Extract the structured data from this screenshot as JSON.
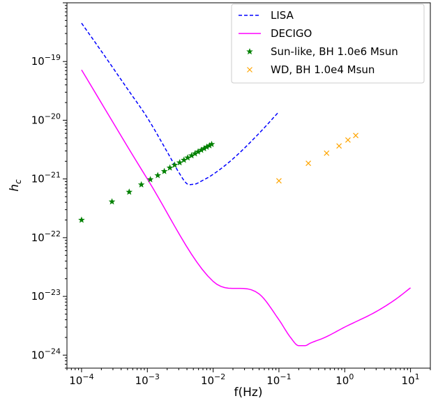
{
  "chart_data": {
    "type": "line",
    "xlabel": "f(Hz)",
    "ylabel": "h_c",
    "xscale": "log",
    "yscale": "log",
    "xlim": [
      6e-05,
      20
    ],
    "ylim": [
      6e-25,
      1e-18
    ],
    "grid": false,
    "legend_position": "top-right",
    "x_ticks": [
      {
        "base": "10",
        "exp": "−4",
        "value": 0.0001
      },
      {
        "base": "10",
        "exp": "−3",
        "value": 0.001
      },
      {
        "base": "10",
        "exp": "−2",
        "value": 0.01
      },
      {
        "base": "10",
        "exp": "−1",
        "value": 0.1
      },
      {
        "base": "10",
        "exp": "0",
        "value": 1
      },
      {
        "base": "10",
        "exp": "1",
        "value": 10
      }
    ],
    "y_ticks": [
      {
        "base": "10",
        "exp": "−24",
        "value": 1e-24
      },
      {
        "base": "10",
        "exp": "−23",
        "value": 1e-23
      },
      {
        "base": "10",
        "exp": "−22",
        "value": 1e-22
      },
      {
        "base": "10",
        "exp": "−21",
        "value": 1e-21
      },
      {
        "base": "10",
        "exp": "−20",
        "value": 1e-20
      },
      {
        "base": "10",
        "exp": "−19",
        "value": 1e-19
      }
    ],
    "series": [
      {
        "name": "LISA",
        "kind": "line",
        "style": "dashed",
        "color": "#0000ff",
        "x": [
          0.0001,
          0.0002,
          0.0005,
          0.001,
          0.002,
          0.003,
          0.004,
          0.005,
          0.007,
          0.01,
          0.02,
          0.05,
          0.1
        ],
        "y": [
          4.5e-19,
          1.5e-19,
          3.4e-20,
          1.1e-20,
          2.9e-21,
          1.3e-21,
          8.3e-22,
          8.1e-22,
          9.5e-22,
          1.2e-21,
          2.2e-21,
          6e-21,
          1.4e-20
        ]
      },
      {
        "name": "DECIGO",
        "kind": "line",
        "style": "solid",
        "color": "#ff00ff",
        "x": [
          0.0001,
          0.001,
          0.01,
          0.05,
          0.1,
          0.15,
          0.2,
          0.25,
          0.3,
          0.5,
          1,
          3,
          6,
          10
        ],
        "y": [
          7.2e-20,
          1e-21,
          1.8e-23,
          1.1e-23,
          4e-24,
          2e-24,
          1.45e-24,
          1.45e-24,
          1.6e-24,
          2e-24,
          3e-24,
          5.5e-24,
          9e-24,
          1.4e-23
        ]
      },
      {
        "name": "Sun-like, BH 1.0e6 Msun",
        "kind": "scatter",
        "marker": "star",
        "color": "#008000",
        "x": [
          0.0001,
          0.00029,
          0.00053,
          0.00081,
          0.00111,
          0.00144,
          0.00181,
          0.0022,
          0.0026,
          0.0031,
          0.0036,
          0.0041,
          0.0047,
          0.0053,
          0.0059,
          0.0066,
          0.0073,
          0.008,
          0.0088,
          0.0095
        ],
        "y": [
          2e-22,
          4.1e-22,
          6e-22,
          8e-22,
          9.8e-22,
          1.15e-21,
          1.35e-21,
          1.55e-21,
          1.73e-21,
          1.9e-21,
          2.1e-21,
          2.3e-21,
          2.5e-21,
          2.7e-21,
          2.9e-21,
          3.1e-21,
          3.3e-21,
          3.5e-21,
          3.7e-21,
          3.9e-21
        ]
      },
      {
        "name": "WD, BH 1.0e4 Msun",
        "kind": "scatter",
        "marker": "x",
        "color": "#ffa500",
        "x": [
          0.1,
          0.28,
          0.53,
          0.82,
          1.12,
          1.47
        ],
        "y": [
          9.3e-22,
          1.85e-21,
          2.75e-21,
          3.65e-21,
          4.6e-21,
          5.5e-21
        ]
      }
    ]
  }
}
